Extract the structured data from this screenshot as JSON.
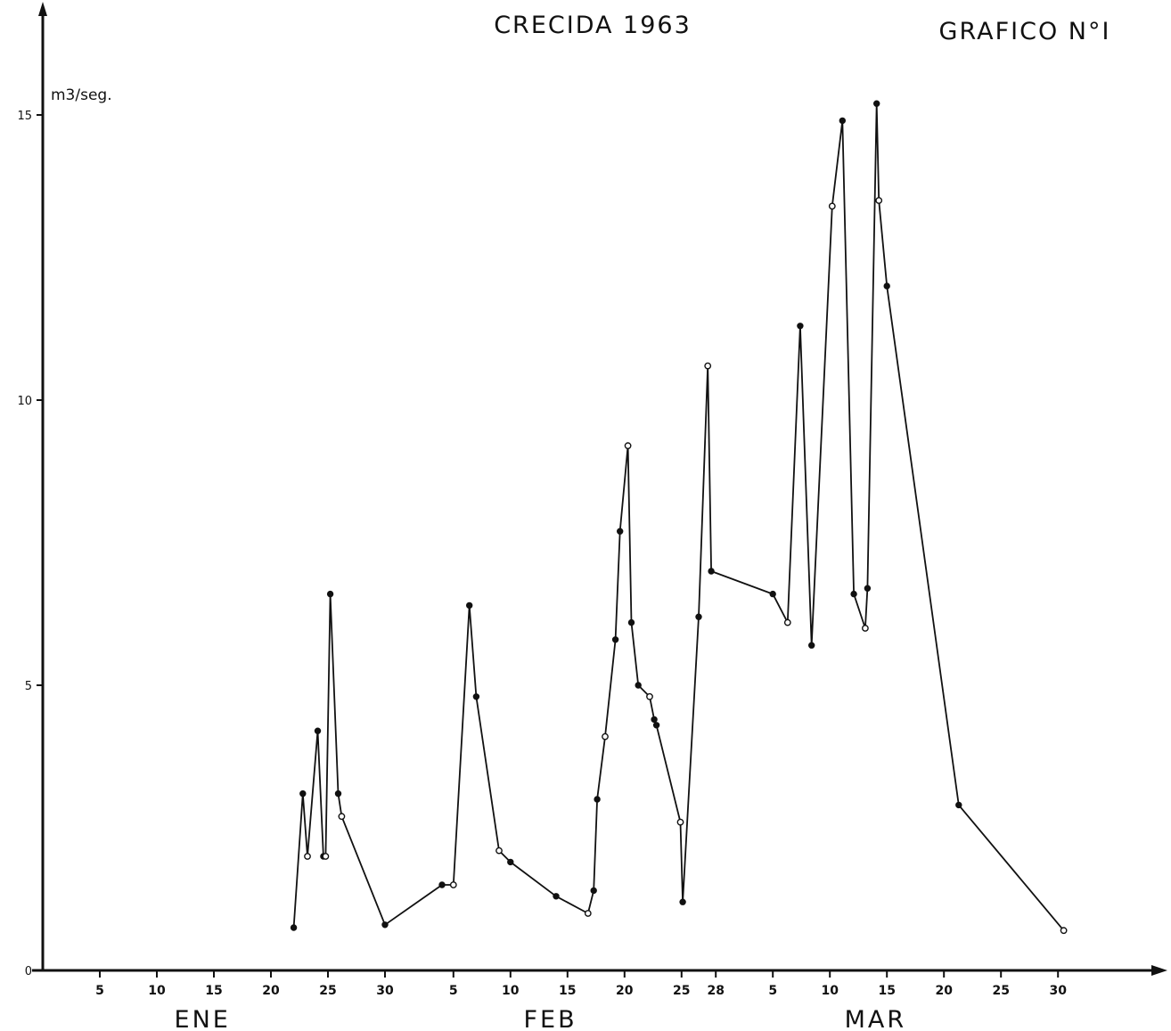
{
  "chart_data": {
    "type": "line",
    "title": "CRECIDA 1963",
    "subtitle": "GRAFICO N°I",
    "ylabel": "m3/seg.",
    "ylim": [
      0,
      16
    ],
    "yticks": [
      0,
      5,
      10,
      15
    ],
    "grid": false,
    "x_tick_labels": [
      "5",
      "10",
      "15",
      "20",
      "25",
      "30",
      "5",
      "10",
      "15",
      "20",
      "25",
      "28",
      "5",
      "10",
      "15",
      "20",
      "25",
      "30"
    ],
    "x_tick_days": [
      5,
      10,
      15,
      20,
      25,
      30,
      36,
      41,
      46,
      51,
      56,
      59,
      64,
      69,
      74,
      79,
      84,
      89
    ],
    "months": [
      {
        "label": "ENE",
        "center_day": 14
      },
      {
        "label": "FEB",
        "center_day": 44.5
      },
      {
        "label": "MAR",
        "center_day": 73
      }
    ],
    "series": [
      {
        "x": [
          22,
          22.8,
          23.2,
          24.1,
          24.6,
          24.8,
          25.2,
          25.9,
          26.2,
          30,
          35,
          36,
          37.4,
          38,
          40,
          41,
          45,
          47.8,
          48.3,
          48.6,
          49.3,
          50.2,
          50.6,
          51.3,
          51.6,
          52.2,
          53.2,
          53.6,
          53.8,
          55.9,
          56.1,
          57.5,
          58.3,
          58.6,
          64,
          65.3,
          66.4,
          67.4,
          69.2,
          70.1,
          71.1,
          72.1,
          72.3,
          73.1,
          73.3,
          74,
          80.3,
          89.5
        ],
        "y": [
          0.75,
          3.1,
          2.0,
          4.2,
          2.0,
          2.0,
          6.6,
          3.1,
          2.7,
          0.8,
          1.5,
          1.5,
          6.4,
          4.8,
          2.1,
          1.9,
          1.3,
          1.0,
          1.4,
          3.0,
          4.1,
          5.8,
          7.7,
          9.2,
          6.1,
          5.0,
          4.8,
          4.4,
          4.3,
          2.6,
          1.2,
          6.2,
          10.6,
          7.0,
          6.6,
          6.1,
          11.3,
          5.7,
          13.4,
          14.9,
          6.6,
          6.0,
          6.7,
          15.2,
          13.5,
          12.0,
          2.9,
          0.7
        ]
      }
    ]
  }
}
